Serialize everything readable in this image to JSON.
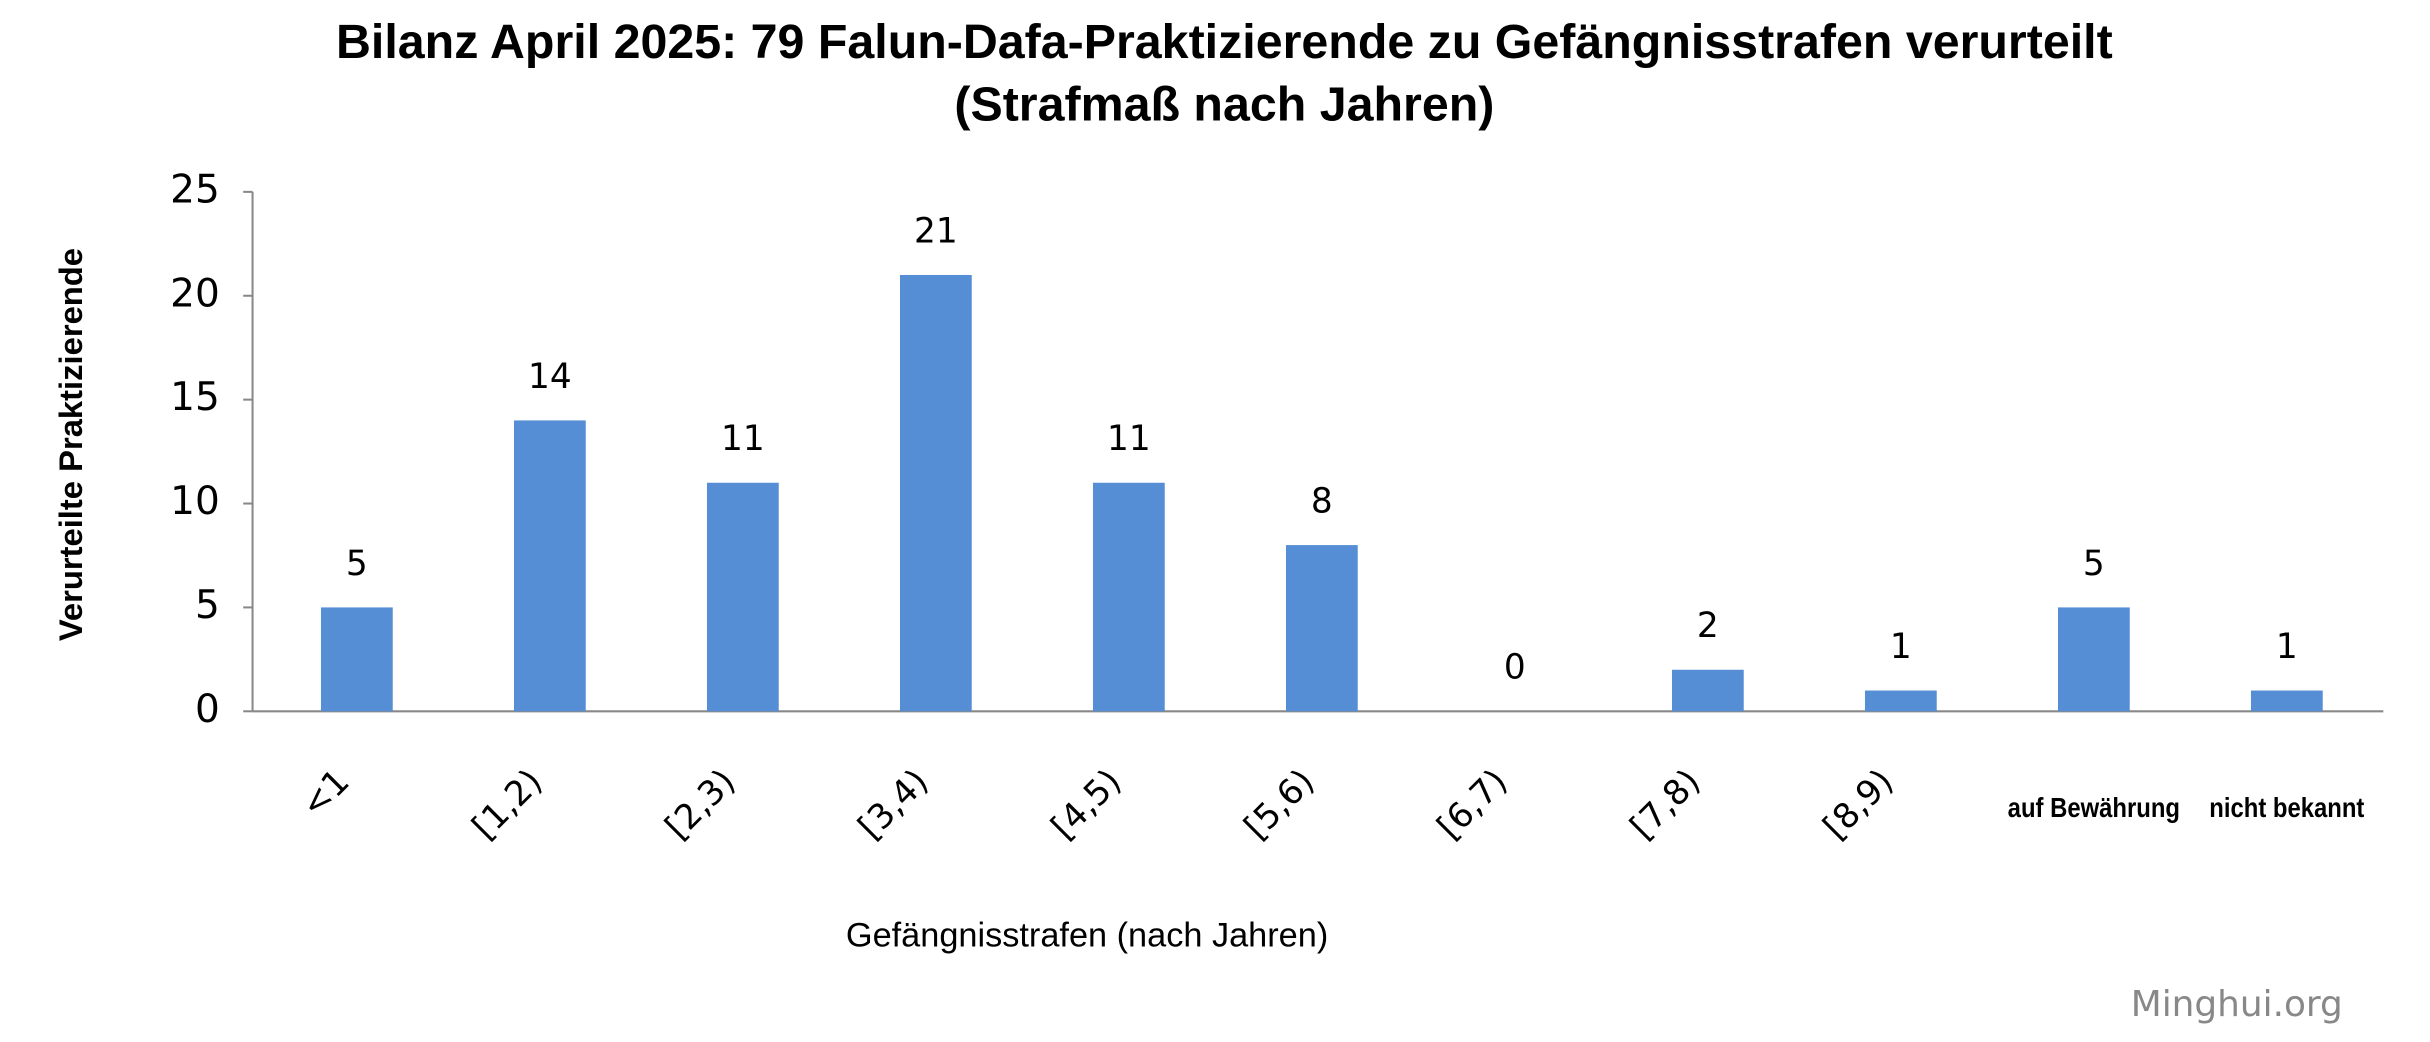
{
  "chart_data": {
    "type": "bar",
    "title": [
      "Bilanz April 2025: 79 Falun-Dafa-Praktizierende zu Gefängnisstrafen verurteilt",
      "(Strafmaß nach Jahren)"
    ],
    "x_label": "Gefängnisstrafen (nach Jahren)",
    "y_label": "Verurteilte Praktizierende",
    "categories": [
      "<1",
      "[1,2)",
      "[2,3)",
      "[3,4)",
      "[4,5)",
      "[5,6)",
      "[6,7)",
      "[7,8)",
      "[8,9)",
      "auf Bewährung",
      "nicht bekannt"
    ],
    "values": [
      5,
      14,
      11,
      21,
      11,
      8,
      0,
      2,
      1,
      5,
      1
    ],
    "color": "#558ed5",
    "ylim": [
      0,
      25
    ],
    "yticks": [
      0,
      5,
      10,
      15,
      20,
      25
    ],
    "grid": false,
    "watermark": "Minghui.org"
  }
}
